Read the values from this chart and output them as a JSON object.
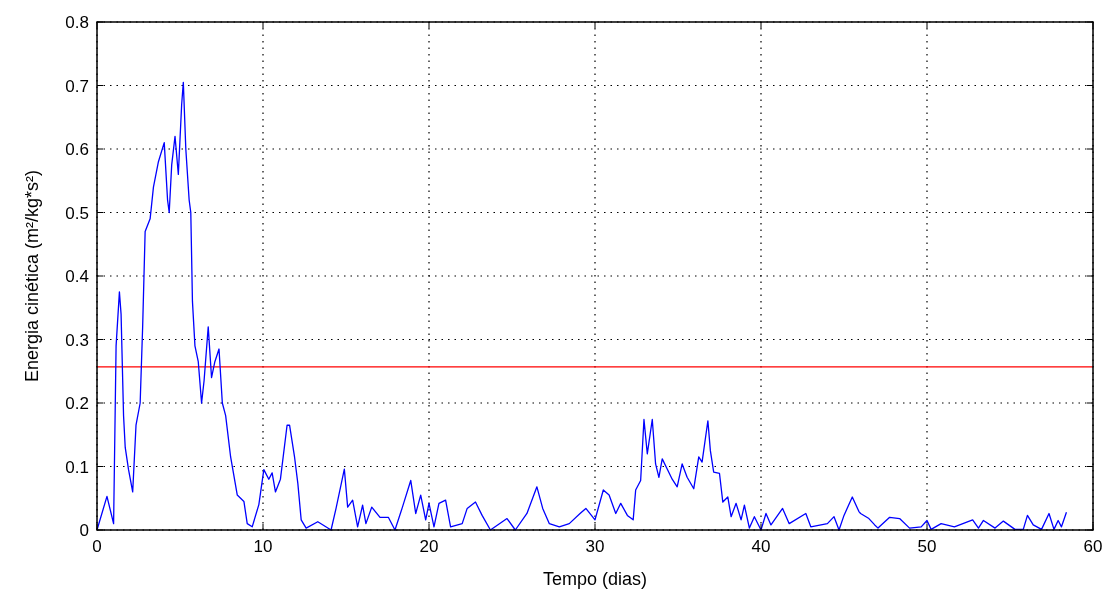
{
  "chart_data": {
    "type": "line",
    "xlabel": "Tempo (dias)",
    "ylabel": "Energia cinética (m²/kg*s²)",
    "xlim": [
      0,
      60
    ],
    "xticks": [
      0,
      10,
      20,
      30,
      40,
      50,
      60
    ],
    "ylim": [
      0,
      0.8
    ],
    "yticks": [
      0,
      0.1,
      0.2,
      0.3,
      0.4,
      0.5,
      0.6,
      0.7,
      0.8
    ],
    "grid": true,
    "line_style": "solid",
    "ref_lines": [
      {
        "axis": "y",
        "value": 0.257,
        "color": "#ff0000"
      }
    ],
    "series": [
      {
        "color": "#0000ff",
        "x": [
          0,
          0.6,
          1.0,
          1.15,
          1.35,
          1.45,
          1.6,
          1.7,
          1.9,
          2.15,
          2.35,
          2.6,
          2.75,
          2.9,
          3.2,
          3.4,
          3.7,
          4.05,
          4.25,
          4.35,
          4.5,
          4.7,
          4.9,
          5.1,
          5.2,
          5.35,
          5.55,
          5.65,
          5.75,
          5.9,
          6.1,
          6.3,
          6.45,
          6.7,
          6.9,
          7.1,
          7.35,
          7.55,
          7.75,
          8.05,
          8.45,
          8.85,
          9.05,
          9.35,
          9.75,
          10.05,
          10.35,
          10.55,
          10.75,
          11.05,
          11.45,
          11.6,
          11.9,
          12.1,
          12.3,
          12.6,
          13.3,
          14.1,
          14.4,
          14.9,
          15.1,
          15.4,
          15.7,
          16.0,
          16.2,
          16.55,
          17.05,
          17.55,
          17.95,
          18.4,
          18.9,
          19.2,
          19.5,
          19.8,
          20.0,
          20.3,
          20.6,
          21.0,
          21.3,
          22.0,
          22.3,
          22.8,
          23.2,
          23.7,
          24.7,
          25.2,
          25.9,
          26.5,
          26.85,
          27.25,
          27.85,
          28.45,
          29.1,
          29.45,
          30.0,
          30.5,
          30.85,
          31.25,
          31.55,
          31.95,
          32.3,
          32.45,
          32.75,
          32.95,
          33.15,
          33.45,
          33.65,
          33.85,
          34.05,
          34.35,
          34.65,
          34.95,
          35.25,
          35.55,
          35.95,
          36.25,
          36.45,
          36.8,
          36.95,
          37.15,
          37.5,
          37.7,
          38.0,
          38.2,
          38.5,
          38.8,
          39.0,
          39.3,
          39.6,
          40.0,
          40.3,
          40.6,
          41.3,
          41.7,
          42.7,
          43.0,
          44.0,
          44.4,
          44.7,
          45.0,
          45.5,
          45.9,
          46.0,
          46.5,
          46.85,
          47.05,
          47.75,
          48.35,
          48.95,
          49.65,
          50.0,
          50.25,
          50.85,
          51.65,
          52.75,
          53.1,
          53.4,
          54.1,
          54.6,
          55.3,
          55.8,
          56.05,
          56.4,
          56.9,
          57.35,
          57.65,
          57.9,
          58.1,
          58.4
        ],
        "values": [
          0,
          0.053,
          0.01,
          0.29,
          0.375,
          0.34,
          0.18,
          0.13,
          0.095,
          0.06,
          0.165,
          0.2,
          0.32,
          0.47,
          0.49,
          0.54,
          0.58,
          0.61,
          0.52,
          0.5,
          0.575,
          0.62,
          0.56,
          0.67,
          0.705,
          0.6,
          0.52,
          0.5,
          0.36,
          0.29,
          0.265,
          0.2,
          0.235,
          0.32,
          0.24,
          0.265,
          0.285,
          0.2,
          0.18,
          0.115,
          0.055,
          0.045,
          0.01,
          0.005,
          0.04,
          0.095,
          0.08,
          0.09,
          0.06,
          0.08,
          0.165,
          0.165,
          0.115,
          0.073,
          0.016,
          0.003,
          0.013,
          0,
          0.034,
          0.096,
          0.036,
          0.047,
          0.005,
          0.039,
          0.01,
          0.036,
          0.02,
          0.02,
          0,
          0.036,
          0.078,
          0.026,
          0.055,
          0.016,
          0.042,
          0.005,
          0.042,
          0.047,
          0.005,
          0.01,
          0.034,
          0.044,
          0.023,
          0,
          0.018,
          0,
          0.026,
          0.068,
          0.034,
          0.01,
          0.005,
          0.01,
          0.026,
          0.034,
          0.016,
          0.063,
          0.055,
          0.026,
          0.042,
          0.023,
          0.016,
          0.063,
          0.078,
          0.174,
          0.12,
          0.174,
          0.104,
          0.083,
          0.112,
          0.096,
          0.08,
          0.068,
          0.104,
          0.083,
          0.065,
          0.115,
          0.107,
          0.172,
          0.125,
          0.091,
          0.089,
          0.044,
          0.052,
          0.021,
          0.042,
          0.016,
          0.039,
          0.003,
          0.021,
          0,
          0.026,
          0.008,
          0.034,
          0.01,
          0.026,
          0.005,
          0.01,
          0.021,
          0,
          0.023,
          0.052,
          0.029,
          0.026,
          0.018,
          0.008,
          0.003,
          0.02,
          0.018,
          0.003,
          0.005,
          0.015,
          0.001,
          0.01,
          0.005,
          0.016,
          0.003,
          0.015,
          0.003,
          0.014,
          0.001,
          0.001,
          0.023,
          0.008,
          0.001,
          0.026,
          0.001,
          0.015,
          0.005,
          0.028
        ]
      }
    ]
  }
}
